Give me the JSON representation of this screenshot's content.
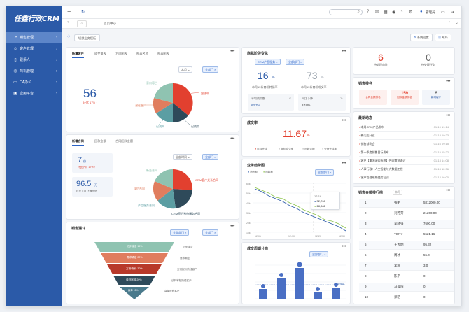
{
  "app": {
    "logo": "任鑫行政CRM"
  },
  "sidebar": {
    "items": [
      {
        "label": "销售管理",
        "icon": "chart-icon",
        "active": true
      },
      {
        "label": "客户管理",
        "icon": "user-icon",
        "active": false
      },
      {
        "label": "联系人",
        "icon": "contact-icon",
        "active": false
      },
      {
        "label": "商机管理",
        "icon": "target-icon",
        "active": false
      },
      {
        "label": "OA办公",
        "icon": "office-icon",
        "active": false
      },
      {
        "label": "应用平台",
        "icon": "monitor-icon",
        "active": false
      }
    ]
  },
  "topbar": {
    "user": "管理员"
  },
  "tabs": {
    "home_label": "首页中心"
  },
  "toolbar": {
    "switch_label": "切换业务模板",
    "settings_label": "系统设置",
    "layout_label": "布局"
  },
  "card_new_customers": {
    "title": "新增客户",
    "tabs": [
      "新增客户",
      "成交量表",
      "方向图表",
      "图表名称",
      "图表图表"
    ],
    "filter": "全部门",
    "period": "本月",
    "value": "56",
    "subtitle": "环比 17% ↑",
    "pie_labels": [
      "跟进中",
      "已成交",
      "潜在客户",
      "已流失",
      "意向客户"
    ]
  },
  "card_new_contracts": {
    "title": "新增合同",
    "tabs": [
      "新增合同",
      "回款金额",
      "合同回款金额"
    ],
    "filter": "全部门",
    "period": "全部时间",
    "stat1_value": "7",
    "stat1_unit": "份",
    "stat1_sub": "环比下月 17% ↑",
    "stat2_value": "96.5",
    "stat2_unit": "万",
    "stat2_sub": "环比下月 下滑比例",
    "pie_labels": [
      "新签合同",
      "续约合同",
      "产品服务合同",
      "CRM客户关系合同",
      "CRM签约系统服务合同"
    ]
  },
  "card_funnel": {
    "title": "销售漏斗",
    "filter1": "全部部门",
    "filter2": "全部门",
    "stages": [
      "初步接洽 15%",
      "需求确定 20%",
      "方案/报价 30%",
      "谈判审核 20%",
      "赢单 15%"
    ],
    "notes": [
      "初步接洽",
      "需求确定",
      "方案报价阶段客户",
      "谈判审核阶段客户",
      "赢单阶段客户"
    ]
  },
  "card_stage": {
    "title": "商机阶段变化",
    "filter1": "CRM产品服务",
    "filter2": "全部部门",
    "v1": "16",
    "v1_unit": "%",
    "v1_label": "本月15条商机转化率",
    "v2": "73",
    "v2_unit": "%",
    "v2_label": "本月15条商机成交率",
    "m1_label": "平均成交额",
    "m1_value": "63.7%",
    "m2_label": "同比下降",
    "m2_value": "8.18%"
  },
  "card_rate": {
    "title": "成交率",
    "value": "11.67",
    "unit": "%",
    "legend": [
      "目标完成",
      "商机成交率",
      "回款金额",
      "业绩完成率"
    ]
  },
  "card_trend": {
    "title": "业务趋势图",
    "legend": [
      "销售额",
      "回款额"
    ],
    "filter": "全部部门",
    "tooltip_date": "12-18",
    "tooltip_v1": "32,706",
    "tooltip_v2": "28,862"
  },
  "card_volume": {
    "title": "成交周期分布",
    "filter": "全部部门",
    "avg": "379.4"
  },
  "card_counts": {
    "val1": "6",
    "label1": "待处理审批",
    "val2": "0",
    "label2": "待处理任务"
  },
  "card_ranking": {
    "title": "销售排名",
    "items": [
      {
        "value": "11",
        "label": "合同金额排名"
      },
      {
        "value": "159",
        "label": "回款金额排名"
      },
      {
        "value": "6",
        "label": "新增客户"
      }
    ]
  },
  "card_news": {
    "title": "最新动态",
    "items": [
      {
        "text": "本月CRM产品发布",
        "date": "01-19 19:14"
      },
      {
        "text": "新门店开业",
        "date": "01-18 19:23"
      },
      {
        "text": "销售部例会",
        "date": "01-16 09:15"
      },
      {
        "text": "第一季度销售目标发布",
        "date": "01-15 15:22"
      },
      {
        "text": "客户【集团采购系统】合同审批通过",
        "date": "01-13 14:08"
      },
      {
        "text": "人事行政：人工智能与大数据工程",
        "date": "01-13 12:36"
      },
      {
        "text": "客户管理系统使用培训",
        "date": "01-12 16:00"
      }
    ]
  },
  "card_sales": {
    "title": "销售金额排行榜",
    "tag": "本月",
    "rows": [
      {
        "rank": "1",
        "name": "张明",
        "value": "5812000.00"
      },
      {
        "rank": "2",
        "name": "刘芳芳",
        "value": "21200.00"
      },
      {
        "rank": "3",
        "name": "吴晓强",
        "value": "7600.00"
      },
      {
        "rank": "4",
        "name": "TONY",
        "value": "5521.16"
      },
      {
        "rank": "5",
        "name": "王大明",
        "value": "95.32"
      },
      {
        "rank": "6",
        "name": "周冰",
        "value": "55.0"
      },
      {
        "rank": "7",
        "name": "李梅",
        "value": "3.0"
      },
      {
        "rank": "8",
        "name": "陈平",
        "value": "0"
      },
      {
        "rank": "9",
        "name": "马晨阳",
        "value": "0"
      },
      {
        "rank": "10",
        "name": "郑浩",
        "value": "0"
      }
    ]
  },
  "colors": {
    "primary": "#2b5aa8",
    "accent_red": "#e2402f",
    "teal": "#3e8c8c",
    "salmon": "#e07d5e"
  }
}
